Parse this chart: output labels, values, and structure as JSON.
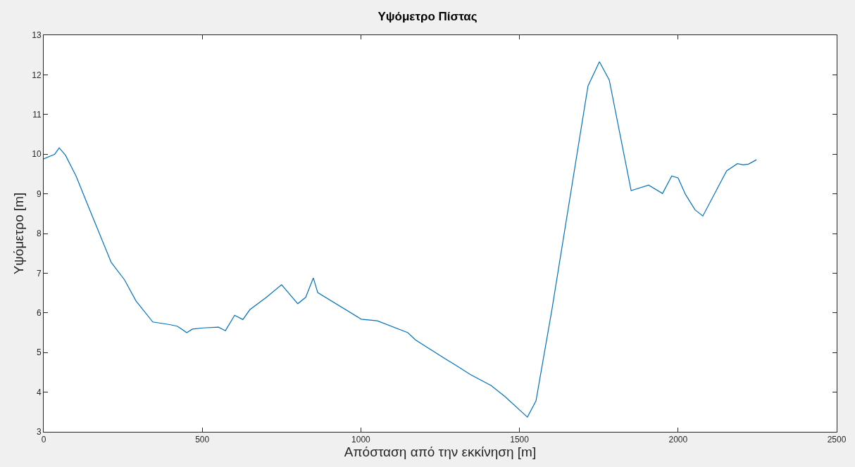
{
  "chart_data": {
    "type": "line",
    "title": "Υψόμετρο Πίστας",
    "xlabel": "Απόσταση από την εκκίνηση [m]",
    "ylabel": "Υψόμετρο [m]",
    "x": [
      0,
      35,
      49,
      69,
      102,
      144,
      213,
      255,
      291,
      344,
      400,
      422,
      451,
      469,
      502,
      551,
      573,
      602,
      628,
      650,
      702,
      750,
      801,
      826,
      850,
      864,
      1001,
      1052,
      1148,
      1172,
      1254,
      1299,
      1346,
      1410,
      1454,
      1525,
      1552,
      1602,
      1716,
      1752,
      1783,
      1852,
      1907,
      1951,
      1980,
      2000,
      2023,
      2053,
      2078,
      2153,
      2187,
      2205,
      2222,
      2247
    ],
    "series": [
      {
        "color": "#0072bd",
        "values": [
          9.88,
          10.0,
          10.16,
          9.97,
          9.45,
          8.62,
          7.27,
          6.83,
          6.3,
          5.77,
          5.7,
          5.66,
          5.5,
          5.59,
          5.62,
          5.64,
          5.55,
          5.94,
          5.83,
          6.08,
          6.39,
          6.71,
          6.23,
          6.39,
          6.88,
          6.51,
          5.84,
          5.8,
          5.5,
          5.32,
          4.9,
          4.68,
          4.44,
          4.17,
          3.89,
          3.37,
          3.78,
          6.07,
          11.72,
          12.33,
          11.87,
          9.08,
          9.22,
          9.01,
          9.45,
          9.4,
          8.99,
          8.6,
          8.44,
          9.58,
          9.76,
          9.73,
          9.75,
          9.86
        ]
      }
    ],
    "xlim": [
      0,
      2500
    ],
    "xticks": [
      0,
      500,
      1000,
      1500,
      2000,
      2500
    ],
    "ylim": [
      3,
      13
    ],
    "yticks": [
      3,
      4,
      5,
      6,
      7,
      8,
      9,
      10,
      11,
      12,
      13
    ],
    "marker": "none",
    "line_style": "solid"
  }
}
